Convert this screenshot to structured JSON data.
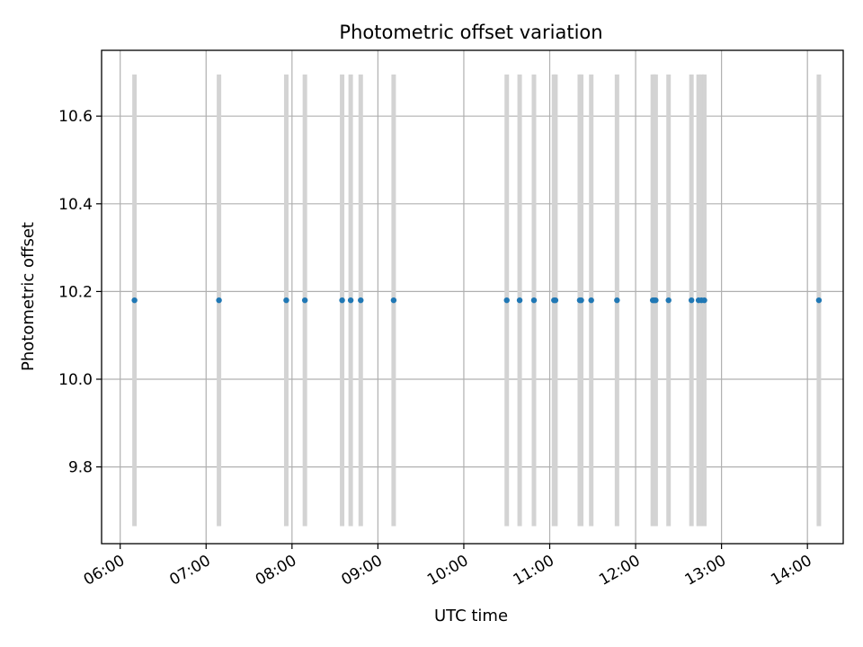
{
  "chart_data": {
    "type": "scatter",
    "title": "Photometric offset variation",
    "xlabel": "UTC time",
    "ylabel": "Photometric offset",
    "x_ticks": [
      "06:00",
      "07:00",
      "08:00",
      "09:00",
      "10:00",
      "11:00",
      "12:00",
      "13:00",
      "14:00"
    ],
    "y_ticks": [
      "9.8",
      "10.0",
      "10.2",
      "10.4",
      "10.6"
    ],
    "xlim": [
      "05:47",
      "14:25"
    ],
    "ylim": [
      9.625,
      10.75
    ],
    "grid": true,
    "marker_color": "#1f77b4",
    "errorbar_color": "#d3d3d3",
    "series": [
      {
        "x": [
          "06:10",
          "07:09",
          "07:56",
          "08:09",
          "08:35",
          "08:41",
          "08:48",
          "09:11",
          "10:30",
          "10:39",
          "10:49",
          "11:03",
          "11:04",
          "11:21",
          "11:22",
          "11:29",
          "11:47",
          "12:12",
          "12:13",
          "12:14",
          "12:23",
          "12:39",
          "12:44",
          "12:46",
          "12:48",
          "14:08"
        ],
        "y": [
          10.18,
          10.18,
          10.18,
          10.18,
          10.18,
          10.18,
          10.18,
          10.18,
          10.18,
          10.18,
          10.18,
          10.18,
          10.18,
          10.18,
          10.18,
          10.18,
          10.18,
          10.18,
          10.18,
          10.18,
          10.18,
          10.18,
          10.18,
          10.18,
          10.18,
          10.18
        ],
        "yerr": 0.515
      }
    ]
  }
}
